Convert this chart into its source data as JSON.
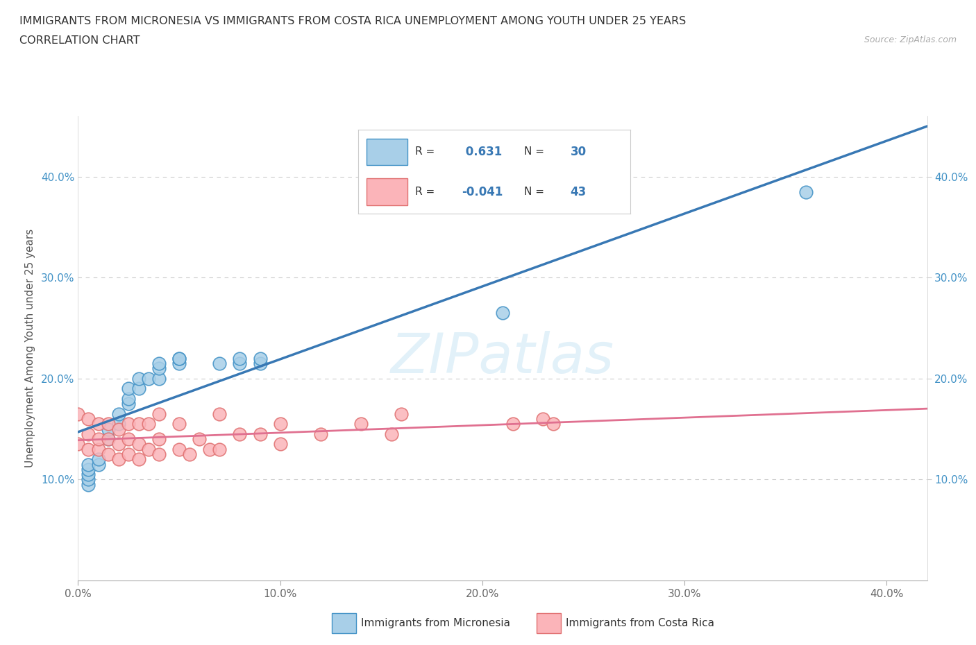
{
  "title_line1": "IMMIGRANTS FROM MICRONESIA VS IMMIGRANTS FROM COSTA RICA UNEMPLOYMENT AMONG YOUTH UNDER 25 YEARS",
  "title_line2": "CORRELATION CHART",
  "source_text": "Source: ZipAtlas.com",
  "ylabel": "Unemployment Among Youth under 25 years",
  "xlim": [
    0.0,
    0.42
  ],
  "ylim": [
    0.0,
    0.46
  ],
  "xticks": [
    0.0,
    0.1,
    0.2,
    0.3,
    0.4
  ],
  "yticks": [
    0.1,
    0.2,
    0.3,
    0.4
  ],
  "xticklabels": [
    "0.0%",
    "10.0%",
    "20.0%",
    "30.0%",
    "40.0%"
  ],
  "yticklabels": [
    "10.0%",
    "20.0%",
    "30.0%",
    "40.0%"
  ],
  "r_micronesia": 0.631,
  "n_micronesia": 30,
  "r_costa_rica": -0.041,
  "n_costa_rica": 43,
  "color_micronesia_fill": "#a8cfe8",
  "color_micronesia_edge": "#4292c6",
  "color_costa_rica_fill": "#fbb4b9",
  "color_costa_rica_edge": "#e07070",
  "color_trend_micronesia": "#3878b4",
  "color_trend_costa_rica": "#e07090",
  "watermark_color": "#d0e8f5",
  "watermark": "ZIPatlas",
  "micronesia_x": [
    0.005,
    0.005,
    0.005,
    0.005,
    0.005,
    0.01,
    0.01,
    0.015,
    0.015,
    0.02,
    0.02,
    0.025,
    0.025,
    0.025,
    0.03,
    0.03,
    0.035,
    0.04,
    0.04,
    0.04,
    0.05,
    0.05,
    0.05,
    0.07,
    0.08,
    0.08,
    0.09,
    0.09,
    0.21,
    0.36
  ],
  "micronesia_y": [
    0.095,
    0.1,
    0.105,
    0.11,
    0.115,
    0.115,
    0.12,
    0.14,
    0.15,
    0.155,
    0.165,
    0.175,
    0.18,
    0.19,
    0.19,
    0.2,
    0.2,
    0.2,
    0.21,
    0.215,
    0.215,
    0.22,
    0.22,
    0.215,
    0.215,
    0.22,
    0.215,
    0.22,
    0.265,
    0.385
  ],
  "costa_rica_x": [
    0.0,
    0.0,
    0.005,
    0.005,
    0.005,
    0.01,
    0.01,
    0.01,
    0.015,
    0.015,
    0.015,
    0.02,
    0.02,
    0.02,
    0.025,
    0.025,
    0.025,
    0.03,
    0.03,
    0.03,
    0.035,
    0.035,
    0.04,
    0.04,
    0.04,
    0.05,
    0.05,
    0.055,
    0.06,
    0.065,
    0.07,
    0.07,
    0.08,
    0.09,
    0.1,
    0.1,
    0.12,
    0.14,
    0.155,
    0.16,
    0.215,
    0.23,
    0.235
  ],
  "costa_rica_y": [
    0.135,
    0.165,
    0.13,
    0.145,
    0.16,
    0.13,
    0.14,
    0.155,
    0.125,
    0.14,
    0.155,
    0.12,
    0.135,
    0.15,
    0.125,
    0.14,
    0.155,
    0.12,
    0.135,
    0.155,
    0.13,
    0.155,
    0.125,
    0.14,
    0.165,
    0.13,
    0.155,
    0.125,
    0.14,
    0.13,
    0.13,
    0.165,
    0.145,
    0.145,
    0.135,
    0.155,
    0.145,
    0.155,
    0.145,
    0.165,
    0.155,
    0.16,
    0.155
  ],
  "legend_label_micronesia": "Immigrants from Micronesia",
  "legend_label_costa_rica": "Immigrants from Costa Rica",
  "background_color": "#ffffff",
  "grid_color": "#cccccc"
}
